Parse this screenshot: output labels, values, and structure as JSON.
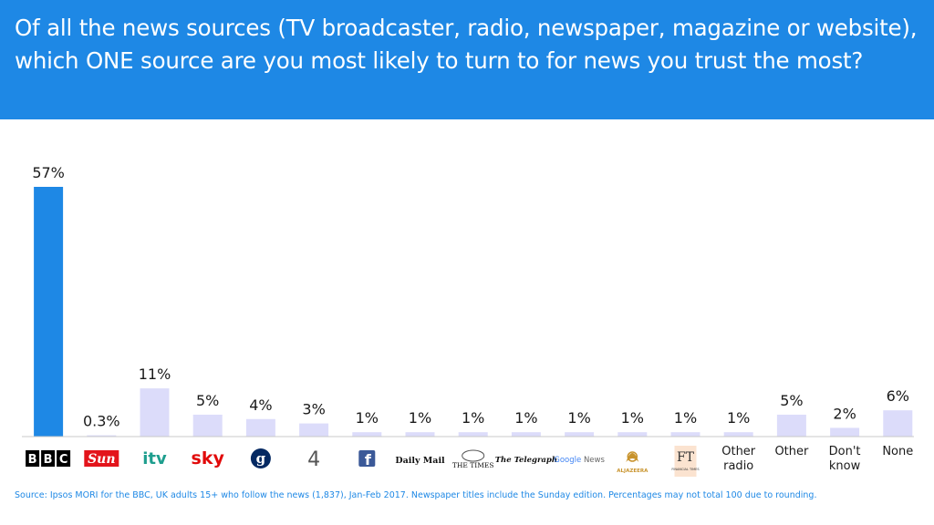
{
  "header": {
    "question": "Of all the news sources (TV broadcaster, radio, newspaper, magazine or website), which ONE source are you most likely to turn to for news you trust the most?"
  },
  "chart_data": {
    "type": "bar",
    "categories": [
      "BBC",
      "The Sun",
      "ITV",
      "Sky",
      "The Guardian",
      "Channel 4",
      "Facebook",
      "Daily Mail",
      "The Times",
      "The Telegraph",
      "Google News",
      "Al Jazeera",
      "FT",
      "Other radio",
      "Other",
      "Don't know",
      "None"
    ],
    "category_display": [
      "",
      "",
      "",
      "",
      "",
      "",
      "",
      "",
      "",
      "",
      "",
      "",
      "",
      "Other\nradio",
      "Other",
      "Don't\nknow",
      "None"
    ],
    "logos": [
      "bbc-logo",
      "the-sun-logo",
      "itv-logo",
      "sky-logo",
      "guardian-logo",
      "channel4-logo",
      "facebook-logo",
      "daily-mail-logo",
      "the-times-logo",
      "telegraph-logo",
      "google-news-logo",
      "al-jazeera-logo",
      "ft-logo",
      "",
      "",
      "",
      ""
    ],
    "logo_text": {
      "bbc": "BBC",
      "sun": "Sun",
      "itv": "itv",
      "sky": "sky",
      "guardian": "g",
      "channel4": "4",
      "facebook": "f",
      "daily_mail": "Daily Mail",
      "times": "THE TIMES",
      "telegraph": "The Telegraph",
      "google": "Google",
      "news": "News",
      "aljazeera": "ALJAZEERA",
      "ft": "FT",
      "ft_sub": "FINANCIAL TIMES"
    },
    "values": [
      57,
      0.3,
      11,
      5,
      4,
      3,
      1,
      1,
      1,
      1,
      1,
      1,
      1,
      1,
      5,
      2,
      6
    ],
    "value_labels": [
      "57%",
      "0.3%",
      "11%",
      "5%",
      "4%",
      "3%",
      "1%",
      "1%",
      "1%",
      "1%",
      "1%",
      "1%",
      "1%",
      "1%",
      "5%",
      "2%",
      "6%"
    ],
    "highlight_index": 0,
    "ylim": [
      0,
      57
    ],
    "grid": false,
    "colors": {
      "highlight": "#1e88e5",
      "default": "#dcdcfa"
    }
  },
  "footer": {
    "source": "Source: Ipsos MORI for the BBC, UK adults 15+ who follow the news (1,837), Jan-Feb 2017. Newspaper titles include the Sunday edition. Percentages may not total 100 due to rounding."
  },
  "colors": {
    "header_bg": "#1e88e5",
    "header_text": "#ffffff",
    "footer_text": "#1e88e5",
    "sun_red": "#e3141b",
    "sky_red": "#e10a0a",
    "itv_teal": "#1e9e8e",
    "guardian_blue": "#052962",
    "facebook_blue": "#3b5998",
    "google_blue": "#4285f4",
    "aljazeera_gold": "#c8932c",
    "ft_pink": "#fbe3d0"
  }
}
